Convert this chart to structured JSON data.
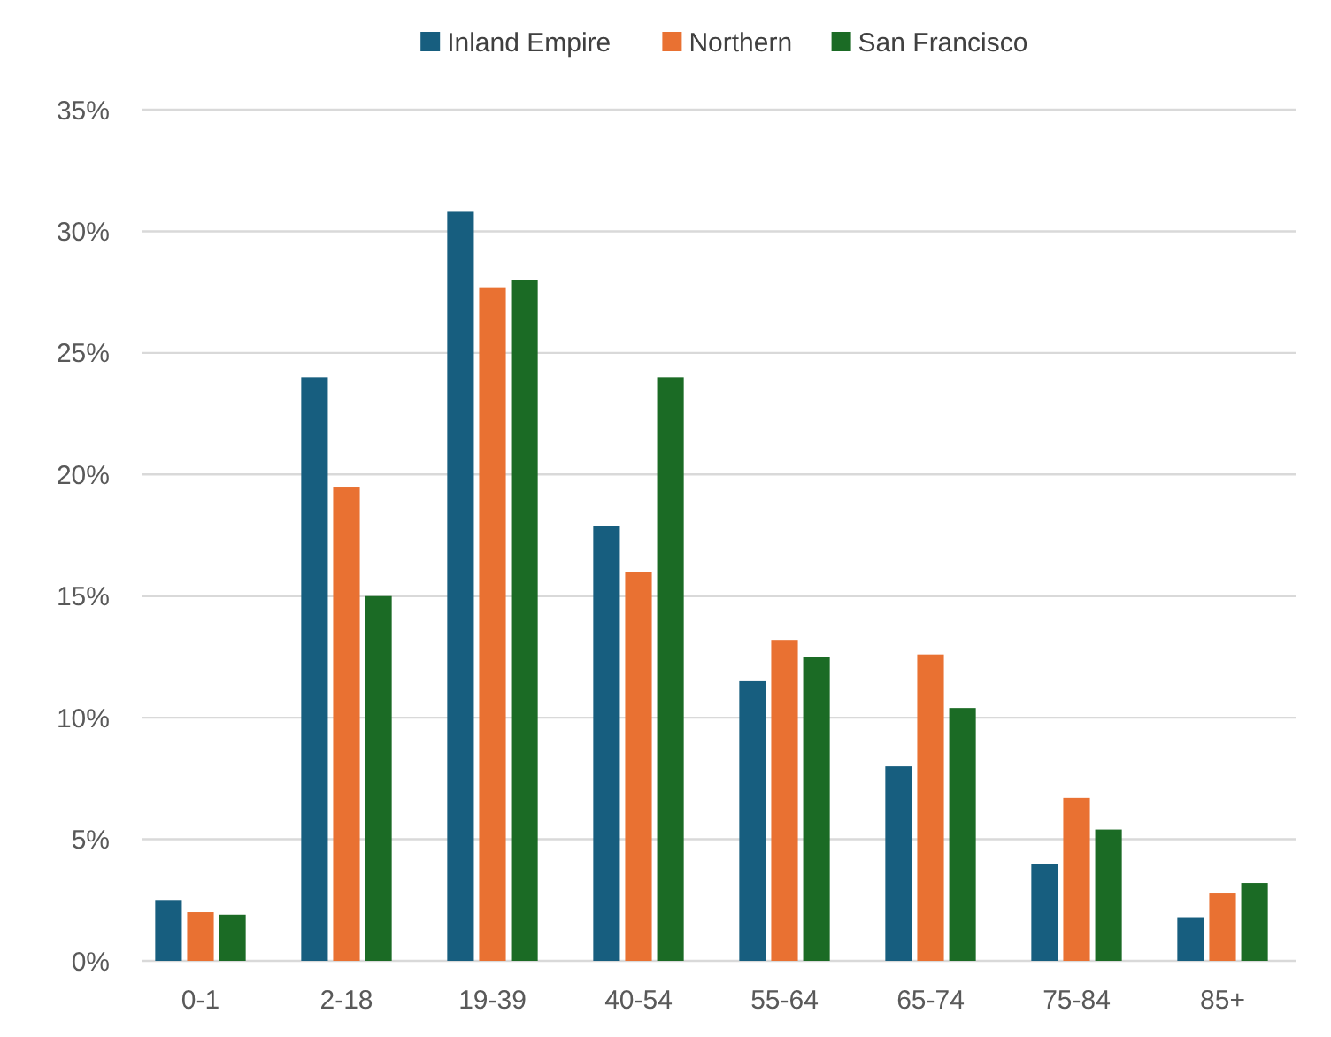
{
  "chart_data": {
    "type": "bar",
    "categories": [
      "0-1",
      "2-18",
      "19-39",
      "40-54",
      "55-64",
      "65-74",
      "75-84",
      "85+"
    ],
    "series": [
      {
        "name": "Inland Empire",
        "color": "#175e7f",
        "values": [
          2.5,
          24.0,
          30.8,
          17.9,
          11.5,
          8.0,
          4.0,
          1.8
        ]
      },
      {
        "name": "Northern",
        "color": "#e97132",
        "values": [
          2.0,
          19.5,
          27.7,
          16.0,
          13.2,
          12.6,
          6.7,
          2.8
        ]
      },
      {
        "name": "San Francisco",
        "color": "#1b6b25",
        "values": [
          1.9,
          15.0,
          28.0,
          24.0,
          12.5,
          10.4,
          5.4,
          3.2
        ]
      }
    ],
    "ylim": [
      0,
      35
    ],
    "yticks": [
      {
        "value": 0,
        "label": "0%"
      },
      {
        "value": 5,
        "label": "5%"
      },
      {
        "value": 10,
        "label": "10%"
      },
      {
        "value": 15,
        "label": "15%"
      },
      {
        "value": 20,
        "label": "20%"
      },
      {
        "value": 25,
        "label": "25%"
      },
      {
        "value": 30,
        "label": "30%"
      },
      {
        "value": 35,
        "label": "35%"
      }
    ],
    "grid": "y",
    "legend": "top"
  }
}
